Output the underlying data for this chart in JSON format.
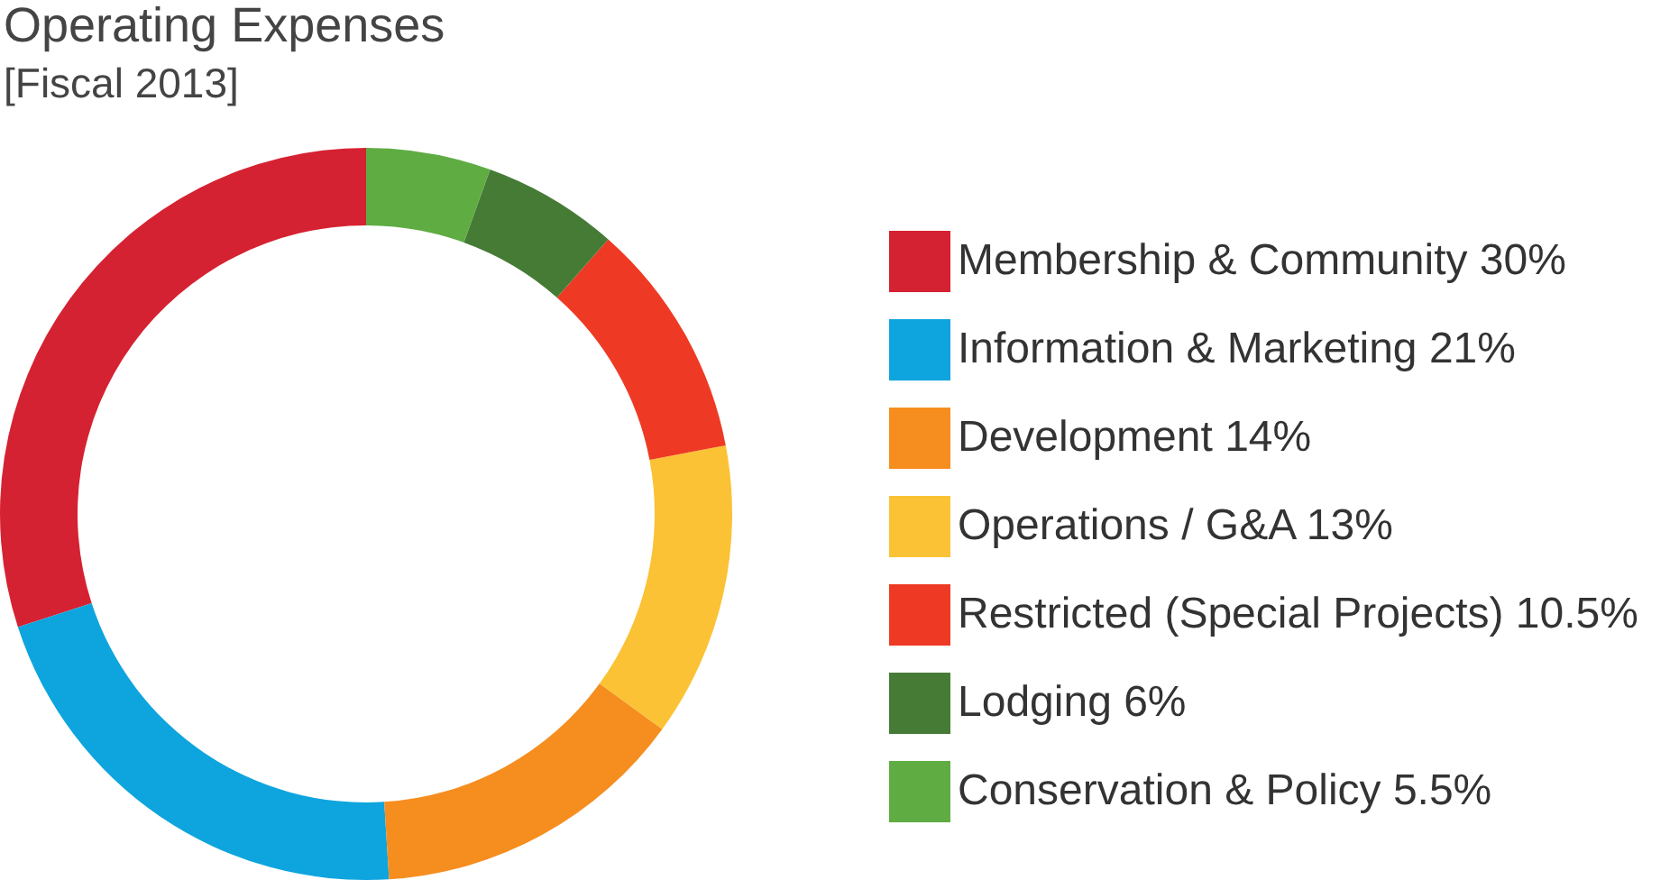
{
  "chart_data": {
    "type": "donut",
    "title": "Operating Expenses",
    "subtitle": "[Fiscal 2013]",
    "categories": [
      "Membership & Community",
      "Information & Marketing",
      "Development",
      "Operations / G&A",
      "Restricted (Special Projects)",
      "Lodging",
      "Conservation & Policy"
    ],
    "values": [
      30,
      21,
      14,
      13,
      10.5,
      6,
      5.5
    ],
    "value_labels": [
      "30%",
      "21%",
      "14%",
      "13%",
      "10.5%",
      "6%",
      "5.5%"
    ],
    "colors": [
      "#d52232",
      "#0ea5de",
      "#f68d1f",
      "#fbc235",
      "#ee3a24",
      "#467b36",
      "#5fac43"
    ],
    "legend": "right"
  }
}
